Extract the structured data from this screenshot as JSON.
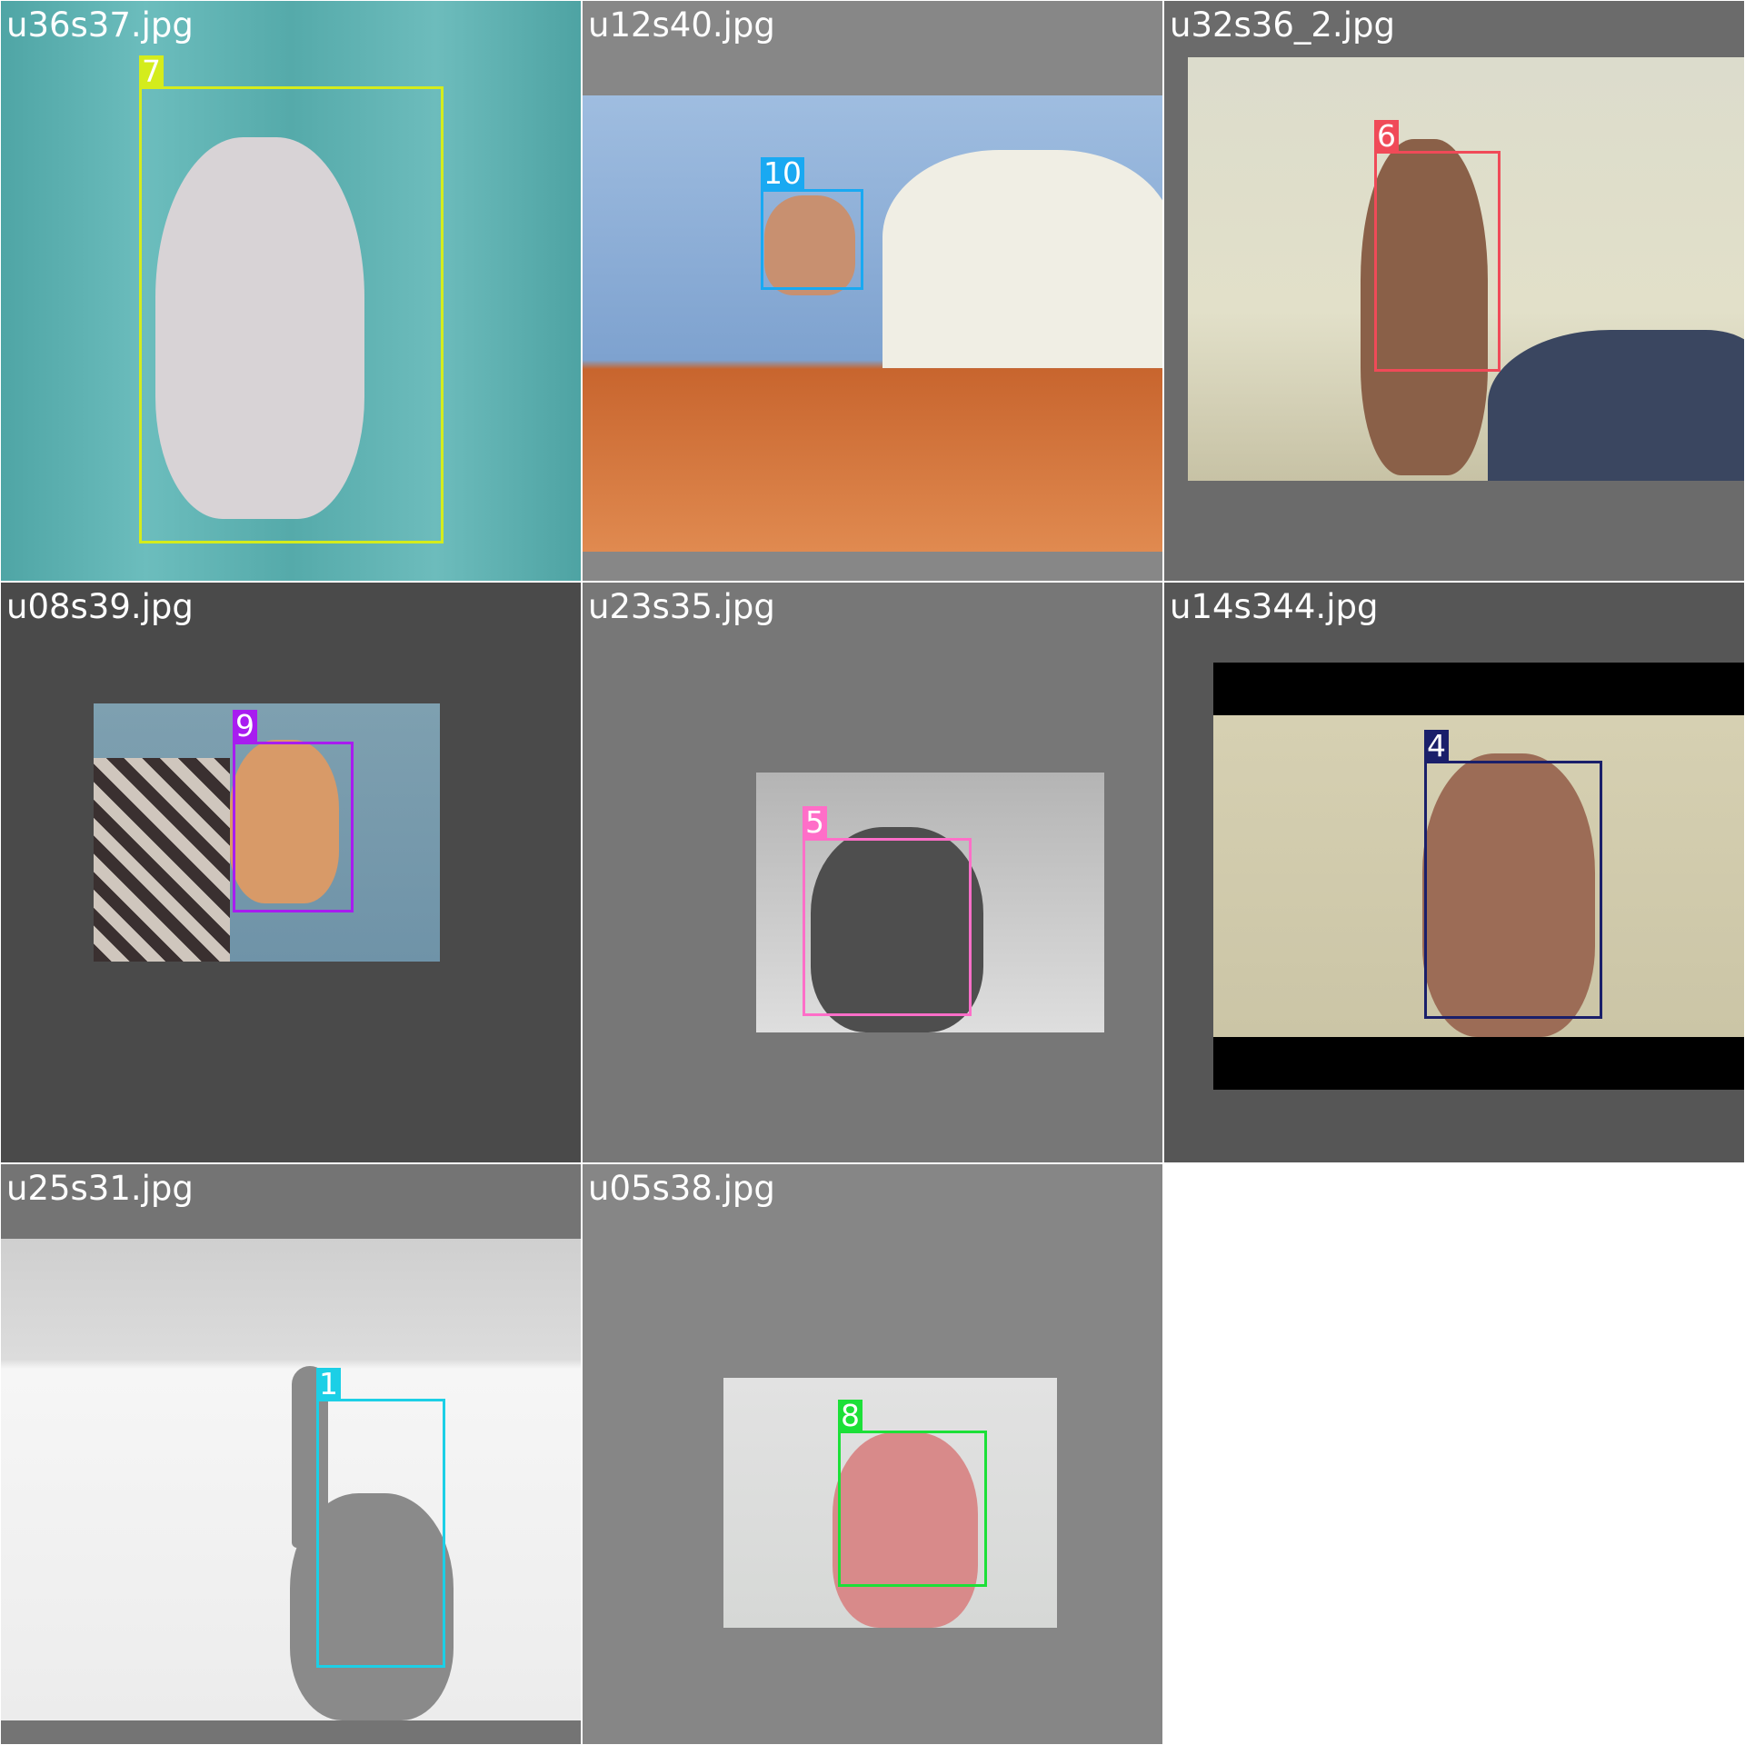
{
  "tiles": [
    {
      "filename": "u36s37.jpg",
      "bg": "#6b6b6b",
      "photo_bg": "linear-gradient(90deg,#4fa5a5 0%,#6cbdbd 25%,#55aaaa 50%,#6dbcbc 75%,#4ea3a3 100%)",
      "skin": "#d8d3d6",
      "box_color": "#d4ec1c",
      "label": "7"
    },
    {
      "filename": "u12s40.jpg",
      "bg": "#878787",
      "photo_bg": "linear-gradient(180deg,#9fbde0 0%,#7ea2cf 58%,#c8652e 60%,#e08a50 100%)",
      "skin": "#c89070",
      "box_color": "#19a9f2",
      "label": "10"
    },
    {
      "filename": "u32s36_2.jpg",
      "bg": "#6b6b6b",
      "photo_bg": "linear-gradient(180deg,#dcdccc 0%,#e2e0c9 60%,#c7c2a5 100%)",
      "skin": "#8a6048",
      "box_color": "#f04a58",
      "label": "6"
    },
    {
      "filename": "u08s39.jpg",
      "bg": "#4a4a4a",
      "photo_bg": "linear-gradient(180deg,#7ea0b0 0%,#6f93a8 100%)",
      "skin": "#d89a68",
      "box_color": "#a81cf0",
      "label": "9"
    },
    {
      "filename": "u23s35.jpg",
      "bg": "#777777",
      "photo_bg": "linear-gradient(180deg,#b4b4b4 0%,#dedede 100%)",
      "skin": "#4e4e4e",
      "box_color": "#ff6ec8",
      "label": "5"
    },
    {
      "filename": "u14s344.jpg",
      "bg": "#565656",
      "photo_bg": "linear-gradient(180deg,#d8d2b4 0%,#c9c3a4 100%)",
      "skin": "#9c6c56",
      "box_color": "#1a1f6a",
      "label": "4"
    },
    {
      "filename": "u25s31.jpg",
      "bg": "#747474",
      "photo_bg": "linear-gradient(180deg,#cfcfcf 0%,#dcdcdc 25%,#f6f6f6 27%,#ececec 100%)",
      "skin": "#8a8a8a",
      "box_color": "#1ccfe6",
      "label": "1"
    },
    {
      "filename": "u05s38.jpg",
      "bg": "#868686",
      "photo_bg": "linear-gradient(180deg,#e2e2e2 0%,#d6d8d6 100%)",
      "skin": "#d88a8a",
      "box_color": "#1ce038",
      "label": "8"
    }
  ]
}
